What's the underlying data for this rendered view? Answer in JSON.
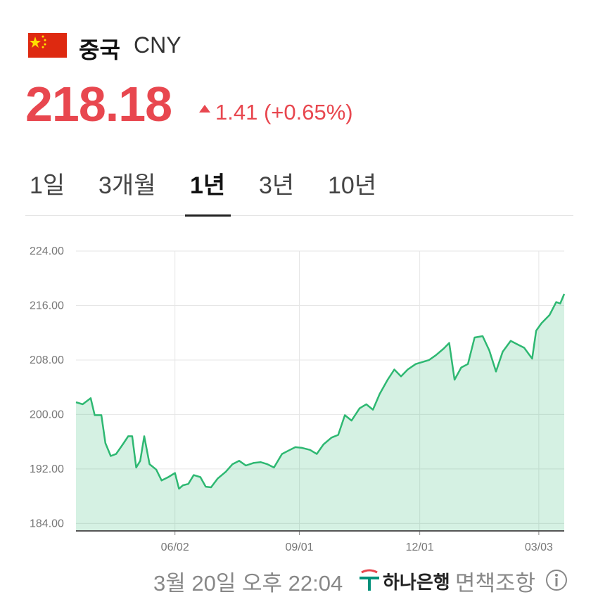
{
  "header": {
    "country": "중국",
    "code": "CNY",
    "price": "218.18",
    "change": "1.41 (+0.65%)"
  },
  "tabs": [
    "1일",
    "3개월",
    "1년",
    "3년",
    "10년"
  ],
  "active_tab": 2,
  "chart_data": {
    "type": "area",
    "x": [
      0,
      5,
      11,
      14,
      19,
      22,
      26,
      30,
      35,
      39,
      42,
      45,
      48,
      51,
      55,
      60,
      64,
      69,
      74,
      77,
      80,
      84,
      88,
      93,
      97,
      101,
      106,
      112,
      117,
      122,
      127,
      133,
      138,
      143,
      148,
      154,
      159,
      164,
      169,
      175,
      180,
      185,
      191,
      196,
      201,
      206,
      212,
      217,
      222,
      227,
      233,
      238,
      243,
      248,
      254,
      259,
      264,
      269,
      275,
      279,
      283,
      288,
      293,
      298,
      304,
      309,
      314,
      319,
      325,
      330,
      335,
      341,
      344,
      348,
      354,
      359,
      362,
      365
    ],
    "series": [
      {
        "color": "#2eb872",
        "values": [
          201.8,
          201.5,
          202.4,
          199.9,
          199.9,
          195.8,
          193.9,
          194.2,
          195.6,
          196.8,
          196.8,
          192.2,
          193.2,
          196.8,
          192.7,
          191.9,
          190.3,
          190.8,
          191.4,
          189.1,
          189.6,
          189.8,
          191.1,
          190.8,
          189.4,
          189.3,
          190.6,
          191.6,
          192.7,
          193.2,
          192.5,
          192.9,
          193.0,
          192.7,
          192.2,
          194.2,
          194.7,
          195.2,
          195.1,
          194.8,
          194.2,
          195.6,
          196.6,
          197.0,
          199.9,
          199.1,
          200.9,
          201.5,
          200.7,
          203.0,
          205.1,
          206.6,
          205.6,
          206.6,
          207.4,
          207.7,
          208.0,
          208.7,
          209.7,
          210.5,
          205.1,
          206.9,
          207.4,
          211.3,
          211.5,
          209.4,
          206.3,
          209.2,
          210.8,
          210.3,
          209.8,
          208.2,
          212.3,
          213.4,
          214.6,
          216.5,
          216.3,
          217.7
        ]
      }
    ],
    "xlim": [
      0,
      365
    ],
    "xticks": [
      {
        "value": 74,
        "label": "06/02"
      },
      {
        "value": 167,
        "label": "09/01"
      },
      {
        "value": 257,
        "label": "12/01"
      },
      {
        "value": 346,
        "label": "03/03"
      }
    ],
    "ylim": [
      182.9,
      224
    ],
    "yticks": [
      {
        "value": 224,
        "label": "224.00"
      },
      {
        "value": 216,
        "label": "216.00"
      },
      {
        "value": 208,
        "label": "208.00"
      },
      {
        "value": 200,
        "label": "200.00"
      },
      {
        "value": 192,
        "label": "192.00"
      },
      {
        "value": 184,
        "label": "184.00"
      }
    ],
    "grid": true
  },
  "footer": {
    "timestamp": "3월 20일 오후 22:04",
    "bank": "하나은행",
    "disclaimer": "· 면책조항"
  }
}
